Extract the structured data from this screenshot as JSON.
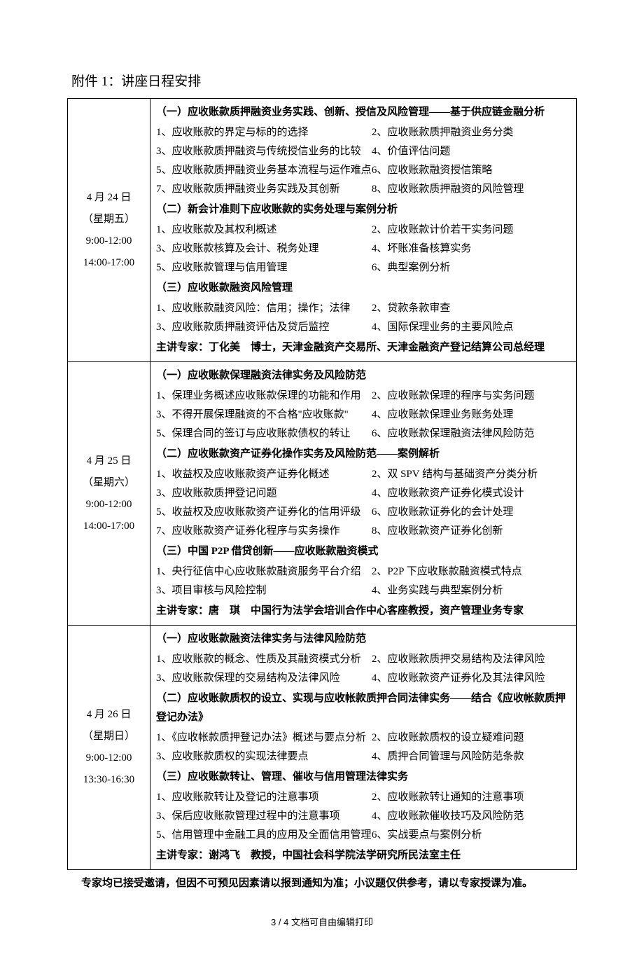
{
  "title": "附件 1：讲座日程安排",
  "days": [
    {
      "date": "4 月 24 日",
      "weekday": "（星期五）",
      "time1": "9:00-12:00",
      "time2": "14:00-17:00",
      "sections": [
        {
          "heading": "（一）应收账款质押融资业务实践、创新、授信及风险管理——基于供应链金融分析",
          "pairs": [
            [
              "1、应收账款的界定与标的的选择",
              "2、应收账款质押融资业务分类"
            ],
            [
              "3、应收账款质押融资与传统授信业务的比较",
              "4、价值评估问题"
            ],
            [
              "5、应收账款质押融资业务基本流程与运作难点",
              "6、应收账款融资授信策略"
            ],
            [
              "7、应收账款质押融资业务实践及其创新",
              "8、应收账款质押融资的风险管理"
            ]
          ]
        },
        {
          "heading": "（二）新会计准则下应收账款的实务处理与案例分析",
          "pairs": [
            [
              "1、应收账款及其权利概述",
              "2、应收账款计价若干实务问题"
            ],
            [
              "3、应收账款核算及会计、税务处理",
              "4、坏账准备核算实务"
            ],
            [
              "5、应收账款管理与信用管理",
              "6、典型案例分析"
            ]
          ]
        },
        {
          "heading": "（三）应收账款融资风险管理",
          "pairs": [
            [
              "1、应收账款融资风险：信用；操作；法律",
              "2、贷款条款审查"
            ],
            [
              "3、应收账款质押融资评估及贷后监控",
              "4、国际保理业务的主要风险点"
            ]
          ]
        }
      ],
      "speaker": "主讲专家：丁化美　博士，天津金融资产交易所、天津金融资产登记结算公司总经理"
    },
    {
      "date": "4 月 25 日",
      "weekday": "（星期六）",
      "time1": "9:00-12:00",
      "time2": "14:00-17:00",
      "sections": [
        {
          "heading": "（一）应收账款保理融资法律实务及风险防范",
          "pairs": [
            [
              "1、保理业务概述应收账款保理的功能和作用",
              "2、应收账款保理的程序与实务问题"
            ],
            [
              "3、不得开展保理融资的不合格\"应收账款\"",
              "4、应收账款保理业务账务处理"
            ],
            [
              "5、保理合同的签订与应收账款债权的转让",
              "6、应收账款保理融资法律风险防范"
            ]
          ]
        },
        {
          "heading": "（二）应收账款资产证券化操作实务及风险防范——案例解析",
          "pairs": [
            [
              "1、收益权及应收账款资产证券化概述",
              "2、双 SPV 结构与基础资产分类分析"
            ],
            [
              "3、应收账款质押登记问题",
              "4、应收账款资产证券化模式设计"
            ],
            [
              "5、收益权及应收账款资产证券化的信用评级",
              "6、应收账款证券化的会计处理"
            ],
            [
              "7、应收账款资产证券化程序与实务操作",
              "8、应收账款资产证券化创新"
            ]
          ]
        },
        {
          "heading": "（三）中国 P2P 借贷创新——应收账款融资模式",
          "pairs": [
            [
              "1、央行征信中心应收账款融资服务平台介绍",
              "2、P2P 下应收账款融资模式特点"
            ],
            [
              "3、项目审核与风险控制",
              "4、业务实践与典型案例分析"
            ]
          ]
        }
      ],
      "speaker": "主讲专家：唐　琪　中国行为法学会培训合作中心客座教授，资产管理业务专家"
    },
    {
      "date": "4 月 26 日",
      "weekday": "（星期日）",
      "time1": "9:00-12:00",
      "time2": "13:30-16:30",
      "sections": [
        {
          "heading": "（一）应收账款融资法律实务与法律风险防范",
          "pairs": [
            [
              "1、应收账款的概念、性质及其融资模式分析",
              "2、应收账款质押交易结构及法律风险"
            ],
            [
              "3、应收账款保理的交易结构及法律风险",
              "4、应收账款资产证券化及其法律风险"
            ]
          ]
        },
        {
          "heading": "（二）应收账款质权的设立、实现与应收帐款质押合同法律实务——结合《应收帐款质押登记办法》",
          "pairs": [
            [
              "1、《应收帐款质押登记办法》概述与要点分析",
              "2、应收账款质权的设立疑难问题"
            ],
            [
              "3、应收账款质权的实现法律要点",
              "4、质押合同管理与风险防范条款"
            ]
          ]
        },
        {
          "heading": "（三）应收账款转让、管理、催收与信用管理法律实务",
          "pairs": [
            [
              "1、应收账款转让及登记的注意事项",
              "2、应收账款转让通知的注意事项"
            ],
            [
              "3、保后应收账款管理过程中的注意事项",
              "4、应收账款催收技巧及风险防范"
            ],
            [
              "5、信用管理中金融工具的应用及全面信用管理",
              "6、实战要点与案例分析"
            ]
          ]
        }
      ],
      "speaker": "主讲专家：谢鸿飞　教授，中国社会科学院法学研究所民法室主任"
    }
  ],
  "footnote": "专家均已接受邀请，但因不可预见因素请以报到通知为准；小议题仅供参考，请以专家授课为准。",
  "pager": "3 / 4 文档可自由编辑打印"
}
